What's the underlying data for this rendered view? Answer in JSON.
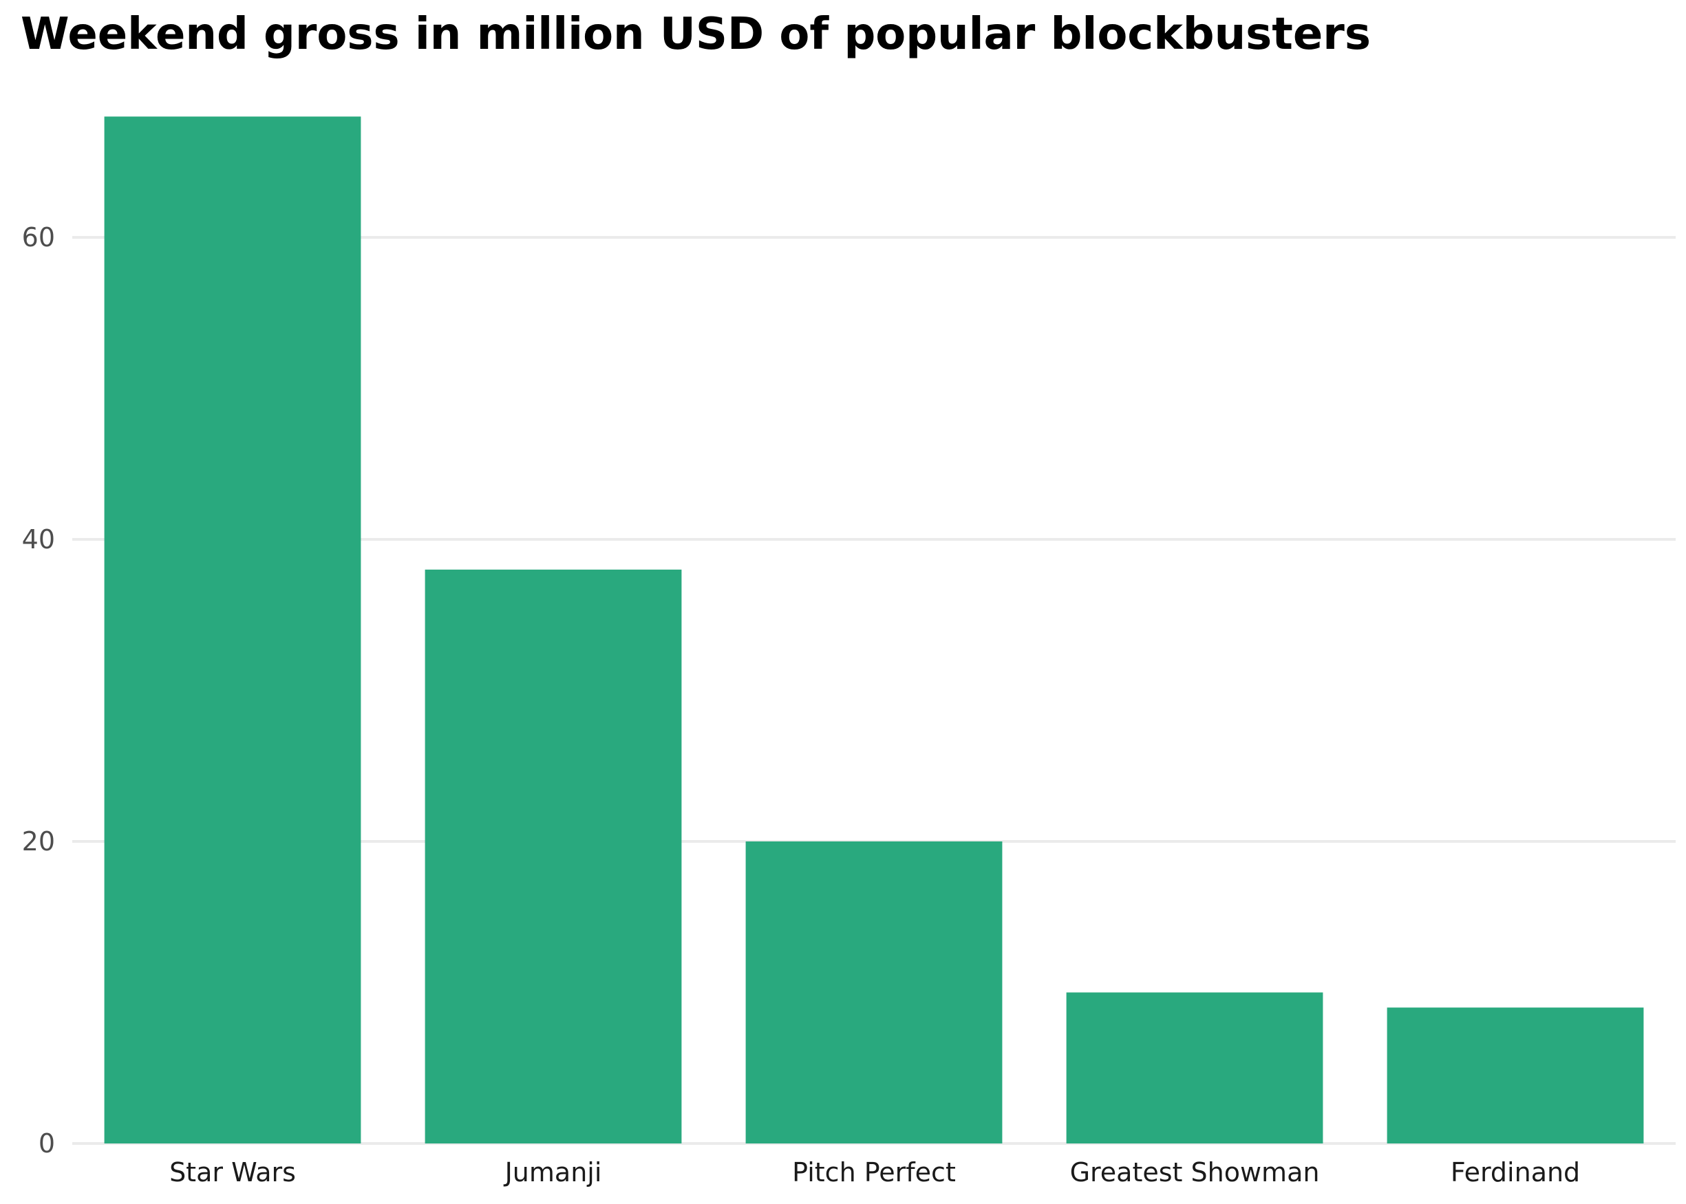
{
  "chart_data": {
    "type": "bar",
    "title": "Weekend gross in million USD of popular blockbusters",
    "xlabel": "",
    "ylabel": "",
    "categories": [
      "Star Wars",
      "Jumanji",
      "Pitch Perfect",
      "Greatest Showman",
      "Ferdinand"
    ],
    "values": [
      68,
      38,
      20,
      10,
      9
    ],
    "ylim": [
      0,
      70
    ],
    "yticks": [
      "0",
      "20",
      "40",
      "60"
    ],
    "grid": true,
    "legend": "none",
    "bar_color": "#29a97e",
    "grid_color": "#ebebeb",
    "tick_label_color_y": "#4d4d4d",
    "tick_label_color_x": "#1a1a1a"
  }
}
